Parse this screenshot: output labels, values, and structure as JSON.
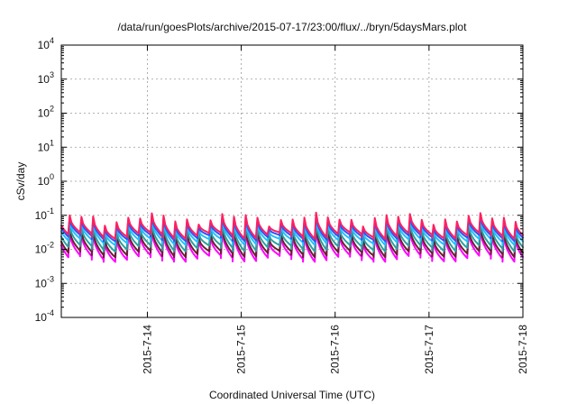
{
  "chart_data": {
    "type": "line",
    "title": "/data/run/goesPlots/archive/2015-07-17/23:00/flux/../bryn/5daysMars.plot",
    "xlabel": "Coordinated Universal Time (UTC)",
    "ylabel": "cSv/day",
    "y_scale": "log",
    "ylim": [
      0.0001,
      10000
    ],
    "y_ticks": [
      {
        "value": 0.0001,
        "base": "10",
        "exp": "-4"
      },
      {
        "value": 0.001,
        "base": "10",
        "exp": "-3"
      },
      {
        "value": 0.01,
        "base": "10",
        "exp": "-2"
      },
      {
        "value": 0.1,
        "base": "10",
        "exp": "-1"
      },
      {
        "value": 1,
        "base": "10",
        "exp": "0"
      },
      {
        "value": 10,
        "base": "10",
        "exp": "1"
      },
      {
        "value": 100,
        "base": "10",
        "exp": "2"
      },
      {
        "value": 1000,
        "base": "10",
        "exp": "3"
      },
      {
        "value": 10000,
        "base": "10",
        "exp": "4"
      }
    ],
    "xlim": [
      "2015-07-13 02:00",
      "2015-07-18 00:00"
    ],
    "x_ticks": [
      "2015-7-14",
      "2015-7-15",
      "2015-7-16",
      "2015-7-17",
      "2015-7-18"
    ],
    "grid": true,
    "legend": "none",
    "sawtooth_period_hours": 3,
    "series": [
      {
        "color": "#ff00ff",
        "peak": 0.028,
        "trough": 0.0055
      },
      {
        "color": "#6b2030",
        "peak": 0.034,
        "trough": 0.0075
      },
      {
        "color": "#2aa0a0",
        "peak": 0.045,
        "trough": 0.011
      },
      {
        "color": "#20c0ff",
        "peak": 0.055,
        "trough": 0.017
      },
      {
        "color": "#3050ff",
        "peak": 0.068,
        "trough": 0.022
      },
      {
        "color": "#ff2060",
        "peak": 0.082,
        "trough": 0.026
      }
    ]
  }
}
